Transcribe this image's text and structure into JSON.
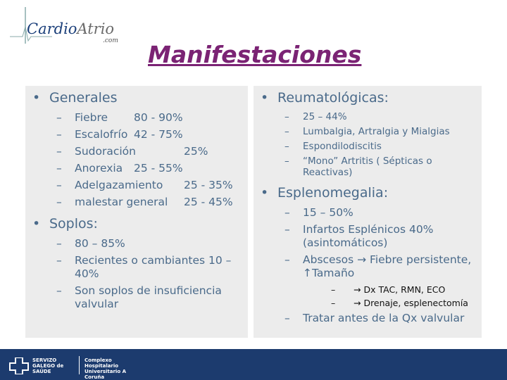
{
  "logo": {
    "part1": "Cardio",
    "part2": "Atrio",
    "suffix": ".com"
  },
  "title": "Manifestaciones",
  "left": [
    {
      "text": "Generales",
      "items": [
        {
          "label": "Fiebre",
          "value": "80 - 90%"
        },
        {
          "label": "Escalofrío",
          "value": "42 - 75%"
        },
        {
          "label": "Sudoración",
          "value": "25%"
        },
        {
          "label": "Anorexia",
          "value": "25 - 55%"
        },
        {
          "label": "Adelgazamiento",
          "value": "25 - 35%"
        },
        {
          "label": "malestar general",
          "value": "25 - 45%"
        }
      ]
    },
    {
      "text": "Soplos:",
      "items": [
        {
          "label": "80 – 85%"
        },
        {
          "label": "Recientes o cambiantes 10 – 40%"
        },
        {
          "label": "Son soplos de insuficiencia valvular"
        }
      ]
    }
  ],
  "right": [
    {
      "text": "Reumatológicas:",
      "small": true,
      "items": [
        {
          "label": "25 – 44%"
        },
        {
          "label": "Lumbalgia, Artralgia y Mialgias"
        },
        {
          "label": "Espondilodiscitis"
        },
        {
          "label": "“Mono” Artritis ( Sépticas o Reactivas)"
        }
      ]
    },
    {
      "text": "Esplenomegalia:",
      "items": [
        {
          "label": "15 – 50%"
        },
        {
          "label": "Infartos Esplénicos 40% (asintomáticos)"
        },
        {
          "label": "Abscesos → Fiebre persistente, ↑Tamaño",
          "items": [
            {
              "label": "→ Dx TAC, RMN, ECO"
            },
            {
              "label": "→ Drenaje, esplenectomía"
            }
          ]
        },
        {
          "label": "Tratar antes de la Qx valvular"
        }
      ]
    }
  ],
  "footer": {
    "left": "SERVIZO GALEGO de SAÚDE",
    "right": "Complexo Hospitalario Universitario A Coruña"
  }
}
